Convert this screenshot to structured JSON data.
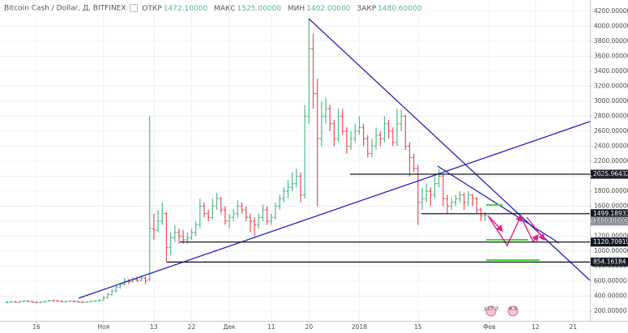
{
  "header": {
    "title": "Bitcoin Cash / Dollar, Д, BITFINEX",
    "readout": [
      {
        "label": "ОТКР",
        "value": "1472.10000"
      },
      {
        "label": "МАКС",
        "value": "1525.00000"
      },
      {
        "label": "МИН",
        "value": "1402.00000"
      },
      {
        "label": "ЗАКР",
        "value": "1480.60000"
      }
    ]
  },
  "chart_data": {
    "type": "ohlc",
    "up_color": "#53b987",
    "down_color": "#eb4d5c",
    "grid": true,
    "xlim": [
      -8.7,
      132
    ],
    "ylim": [
      70,
      4350
    ],
    "xticks": [
      {
        "value": 0,
        "label": "16"
      },
      {
        "value": 16,
        "label": "Ноя"
      },
      {
        "value": 28,
        "label": "13"
      },
      {
        "value": 37,
        "label": "22"
      },
      {
        "value": 46,
        "label": "Дек"
      },
      {
        "value": 56,
        "label": "11"
      },
      {
        "value": 65,
        "label": "20"
      },
      {
        "value": 77,
        "label": "2018"
      },
      {
        "value": 91,
        "label": "15"
      },
      {
        "value": 108,
        "label": "Фев"
      },
      {
        "value": 119,
        "label": "12"
      },
      {
        "value": 128,
        "label": "21"
      }
    ],
    "yticks": [
      {
        "value": 200,
        "label": "200.00000"
      },
      {
        "value": 400,
        "label": "400.00000"
      },
      {
        "value": 600,
        "label": "600.00000"
      },
      {
        "value": 800,
        "label": "800.00000"
      },
      {
        "value": 1000,
        "label": "1000.00000"
      },
      {
        "value": 1200,
        "label": "1200.00000"
      },
      {
        "value": 1400,
        "label": "1400.00000"
      },
      {
        "value": 1600,
        "label": "1600.00000"
      },
      {
        "value": 1800,
        "label": "1800.00000"
      },
      {
        "value": 2000,
        "label": "2000.00000"
      },
      {
        "value": 2200,
        "label": "2200.00000"
      },
      {
        "value": 2400,
        "label": "2400.00000"
      },
      {
        "value": 2600,
        "label": "2600.00000"
      },
      {
        "value": 2800,
        "label": "2800.00000"
      },
      {
        "value": 3000,
        "label": "3000.00000"
      },
      {
        "value": 3200,
        "label": "3200.00000"
      },
      {
        "value": 3400,
        "label": "3400.00000"
      },
      {
        "value": 3600,
        "label": "3600.00000"
      },
      {
        "value": 3800,
        "label": "3800.00000"
      },
      {
        "value": 4000,
        "label": "4000.00000"
      },
      {
        "value": 4200,
        "label": "4200.00000"
      }
    ],
    "levels": [
      {
        "value": 2025.96432,
        "label": "2025.96432"
      },
      {
        "value": 1499.18933,
        "label": "1499.18933"
      },
      {
        "value": 1400,
        "label": "1400.00000"
      },
      {
        "value": 1120.70919,
        "label": "1120.70919"
      },
      {
        "value": 854.16184,
        "label": "854.16184"
      }
    ],
    "badges": [
      "117.3",
      "4.3"
    ],
    "x": [
      -7,
      -6,
      -5,
      -4,
      -3,
      -2,
      -1,
      0,
      1,
      2,
      3,
      4,
      5,
      6,
      7,
      8,
      9,
      10,
      11,
      12,
      13,
      14,
      15,
      16,
      17,
      18,
      19,
      20,
      21,
      22,
      23,
      24,
      25,
      26,
      27,
      28,
      29,
      30,
      31,
      32,
      33,
      34,
      35,
      36,
      37,
      38,
      39,
      40,
      41,
      42,
      43,
      44,
      45,
      46,
      47,
      48,
      49,
      50,
      51,
      52,
      53,
      54,
      55,
      56,
      57,
      58,
      59,
      60,
      61,
      62,
      63,
      64,
      65,
      66,
      67,
      68,
      69,
      70,
      71,
      72,
      73,
      74,
      75,
      76,
      77,
      78,
      79,
      80,
      81,
      82,
      83,
      84,
      85,
      86,
      87,
      88,
      89,
      90,
      91,
      92,
      93,
      94,
      95,
      96,
      97,
      98,
      99,
      100,
      101,
      102,
      103,
      104,
      105,
      106,
      107
    ],
    "ohlc": [
      [
        315,
        335,
        305,
        320
      ],
      [
        320,
        335,
        312,
        325
      ],
      [
        325,
        332,
        310,
        318
      ],
      [
        318,
        340,
        312,
        330
      ],
      [
        330,
        345,
        322,
        335
      ],
      [
        335,
        340,
        320,
        328
      ],
      [
        328,
        335,
        312,
        320
      ],
      [
        320,
        328,
        305,
        315
      ],
      [
        315,
        330,
        308,
        322
      ],
      [
        322,
        338,
        315,
        330
      ],
      [
        330,
        352,
        325,
        340
      ],
      [
        340,
        350,
        330,
        338
      ],
      [
        338,
        345,
        325,
        332
      ],
      [
        332,
        340,
        318,
        325
      ],
      [
        325,
        338,
        320,
        330
      ],
      [
        330,
        342,
        322,
        335
      ],
      [
        335,
        340,
        320,
        328
      ],
      [
        328,
        332,
        312,
        320
      ],
      [
        320,
        328,
        310,
        318
      ],
      [
        318,
        330,
        312,
        322
      ],
      [
        322,
        338,
        318,
        330
      ],
      [
        330,
        345,
        325,
        338
      ],
      [
        338,
        360,
        330,
        345
      ],
      [
        345,
        400,
        340,
        380
      ],
      [
        380,
        440,
        370,
        420
      ],
      [
        420,
        490,
        410,
        470
      ],
      [
        470,
        540,
        450,
        520
      ],
      [
        520,
        580,
        500,
        560
      ],
      [
        560,
        640,
        540,
        600
      ],
      [
        600,
        630,
        560,
        590
      ],
      [
        590,
        650,
        580,
        620
      ],
      [
        620,
        660,
        590,
        610
      ],
      [
        610,
        680,
        600,
        640
      ],
      [
        640,
        660,
        560,
        600
      ],
      [
        620,
        2800,
        600,
        1300
      ],
      [
        1300,
        1500,
        1150,
        1280
      ],
      [
        1280,
        1550,
        1250,
        1400
      ],
      [
        1400,
        1650,
        1350,
        1500
      ],
      [
        1500,
        1520,
        850,
        1050
      ],
      [
        1050,
        1250,
        950,
        1180
      ],
      [
        1180,
        1350,
        1120,
        1250
      ],
      [
        1250,
        1300,
        1100,
        1200
      ],
      [
        1200,
        1280,
        1100,
        1150
      ],
      [
        1150,
        1250,
        1100,
        1180
      ],
      [
        1180,
        1300,
        1150,
        1250
      ],
      [
        1250,
        1400,
        1200,
        1350
      ],
      [
        1350,
        1700,
        1300,
        1600
      ],
      [
        1600,
        1650,
        1450,
        1500
      ],
      [
        1500,
        1550,
        1400,
        1450
      ],
      [
        1450,
        1700,
        1420,
        1600
      ],
      [
        1600,
        1780,
        1550,
        1700
      ],
      [
        1700,
        1720,
        1500,
        1550
      ],
      [
        1550,
        1600,
        1350,
        1400
      ],
      [
        1400,
        1500,
        1300,
        1450
      ],
      [
        1450,
        1560,
        1400,
        1500
      ],
      [
        1500,
        1680,
        1450,
        1600
      ],
      [
        1600,
        1650,
        1500,
        1550
      ],
      [
        1550,
        1600,
        1400,
        1450
      ],
      [
        1450,
        1500,
        1250,
        1400
      ],
      [
        1400,
        1450,
        1200,
        1350
      ],
      [
        1350,
        1500,
        1300,
        1450
      ],
      [
        1450,
        1620,
        1400,
        1550
      ],
      [
        1550,
        1600,
        1350,
        1400
      ],
      [
        1400,
        1500,
        1350,
        1450
      ],
      [
        1450,
        1650,
        1420,
        1600
      ],
      [
        1600,
        1750,
        1550,
        1700
      ],
      [
        1700,
        1850,
        1650,
        1800
      ],
      [
        1800,
        1950,
        1700,
        1850
      ],
      [
        1850,
        2050,
        1800,
        1900
      ],
      [
        1900,
        2100,
        1850,
        2000
      ],
      [
        2000,
        2050,
        1650,
        1750
      ],
      [
        1750,
        2950,
        1700,
        2800
      ],
      [
        2800,
        4100,
        2700,
        3700
      ],
      [
        3700,
        3900,
        2900,
        3100
      ],
      [
        3100,
        3300,
        1600,
        2500
      ],
      [
        2500,
        3000,
        2400,
        2800
      ],
      [
        2800,
        3050,
        2700,
        2900
      ],
      [
        2900,
        2950,
        2600,
        2700
      ],
      [
        2700,
        2750,
        2400,
        2500
      ],
      [
        2500,
        2900,
        2450,
        2800
      ],
      [
        2800,
        2900,
        2550,
        2600
      ],
      [
        2600,
        2650,
        2300,
        2400
      ],
      [
        2400,
        2600,
        2350,
        2500
      ],
      [
        2500,
        2700,
        2450,
        2600
      ],
      [
        2600,
        2800,
        2550,
        2650
      ],
      [
        2650,
        2700,
        2400,
        2500
      ],
      [
        2500,
        2550,
        2250,
        2300
      ],
      [
        2300,
        2500,
        2250,
        2400
      ],
      [
        2400,
        2650,
        2350,
        2550
      ],
      [
        2550,
        2600,
        2400,
        2500
      ],
      [
        2500,
        2800,
        2450,
        2700
      ],
      [
        2700,
        2750,
        2500,
        2600
      ],
      [
        2600,
        2650,
        2400,
        2450
      ],
      [
        2450,
        2900,
        2400,
        2700
      ],
      [
        2700,
        2880,
        2600,
        2800
      ],
      [
        2800,
        2820,
        2350,
        2400
      ],
      [
        2400,
        2450,
        2000,
        2250
      ],
      [
        2250,
        2300,
        2050,
        2100
      ],
      [
        2100,
        2150,
        1350,
        1650
      ],
      [
        1650,
        1850,
        1550,
        1700
      ],
      [
        1700,
        1900,
        1650,
        1800
      ],
      [
        1800,
        1850,
        1600,
        1750
      ],
      [
        1750,
        2000,
        1700,
        1900
      ],
      [
        1900,
        2100,
        1850,
        2000
      ],
      [
        2000,
        2020,
        1600,
        1700
      ],
      [
        1700,
        1750,
        1500,
        1600
      ],
      [
        1600,
        1720,
        1550,
        1650
      ],
      [
        1650,
        1750,
        1600,
        1700
      ],
      [
        1700,
        1800,
        1650,
        1750
      ],
      [
        1750,
        1780,
        1550,
        1650
      ],
      [
        1650,
        1800,
        1600,
        1750
      ],
      [
        1750,
        1760,
        1600,
        1700
      ],
      [
        1700,
        1720,
        1500,
        1550
      ],
      [
        1550,
        1580,
        1400,
        1472.1
      ],
      [
        1472.1,
        1525,
        1402,
        1480.6
      ]
    ]
  }
}
